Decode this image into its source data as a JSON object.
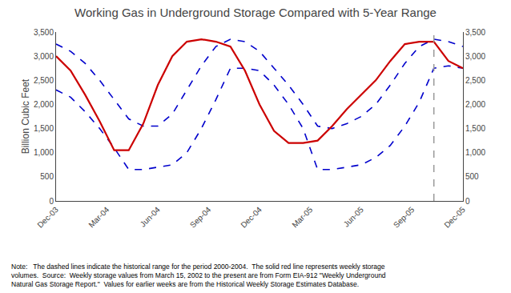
{
  "chart_data": {
    "type": "line",
    "title": "Working Gas in Underground Storage Compared with 5-Year Range",
    "y_label": "Billion Cubic Feet",
    "note": "Note:   The dashed lines indicate the historical range for the period 2000-2004.  The solid red line represents weekly storage\nvolumes.  Source:  Weekly storage values from March 15, 2002 to the present are from Form EIA-912 \"Weekly Underground\nNatural Gas Storage Report.\"  Values for earlier weeks are from the Historical Weekly Storage Estimates Database.",
    "xlim": [
      0,
      28
    ],
    "xticks": [
      {
        "value": 0,
        "label": "Dec-03"
      },
      {
        "value": 3.5,
        "label": "Mar-04"
      },
      {
        "value": 7,
        "label": "Jun-04"
      },
      {
        "value": 10.5,
        "label": "Sep-04"
      },
      {
        "value": 14,
        "label": "Dec-04"
      },
      {
        "value": 17.5,
        "label": "Mar-05"
      },
      {
        "value": 21,
        "label": "Jun-05"
      },
      {
        "value": 24.5,
        "label": "Sep-05"
      },
      {
        "value": 28,
        "label": "Dec-05"
      }
    ],
    "ylim": [
      0,
      3500
    ],
    "yticks": [
      0,
      500,
      {
        "value": 1000,
        "label": "1,000"
      },
      {
        "value": 1500,
        "label": "1,500"
      },
      {
        "value": 2000,
        "label": "2,000"
      },
      {
        "value": 2500,
        "label": "2,500"
      },
      {
        "value": 3000,
        "label": "3,000"
      },
      {
        "value": 3500,
        "label": "3,500"
      }
    ],
    "y2lim": [
      0,
      3500
    ],
    "y2ticks": [
      0,
      500,
      {
        "value": 1000,
        "label": "1,000"
      },
      {
        "value": 1500,
        "label": "1,500"
      },
      {
        "value": 2000,
        "label": "2,000"
      },
      {
        "value": 2500,
        "label": "2,500"
      },
      {
        "value": 3000,
        "label": "3,000"
      },
      {
        "value": 3500,
        "label": "3,500"
      }
    ],
    "grid": false,
    "series": [
      {
        "color": "#0000cc",
        "line_style": "dashed",
        "values": [
          3250,
          3100,
          2850,
          2500,
          2100,
          1700,
          1550,
          1550,
          1800,
          2300,
          2800,
          3200,
          3350,
          3300,
          3100,
          2750,
          2400,
          2000,
          1550,
          1500,
          1600,
          1750,
          2000,
          2400,
          2850,
          3200,
          3350,
          3300,
          3200
        ]
      },
      {
        "color": "#0000cc",
        "line_style": "dashed",
        "values": [
          2300,
          2150,
          1850,
          1500,
          1100,
          650,
          650,
          700,
          750,
          1000,
          1500,
          2100,
          2750,
          2750,
          2700,
          2400,
          2000,
          1500,
          650,
          650,
          700,
          750,
          900,
          1150,
          1550,
          2050,
          2750,
          2800,
          2750
        ]
      },
      {
        "color": "#cc0000",
        "line_style": "solid",
        "values": [
          3000,
          2700,
          2200,
          1650,
          1050,
          1050,
          1600,
          2400,
          3000,
          3300,
          3350,
          3300,
          3200,
          2700,
          2000,
          1450,
          1200,
          1200,
          1250,
          1550,
          1900,
          2200,
          2500,
          2900,
          3250,
          3300,
          3300,
          2900,
          2750
        ]
      }
    ],
    "vlines": [
      {
        "x": 26,
        "color": "#999999",
        "line_style": "dashed"
      }
    ]
  }
}
